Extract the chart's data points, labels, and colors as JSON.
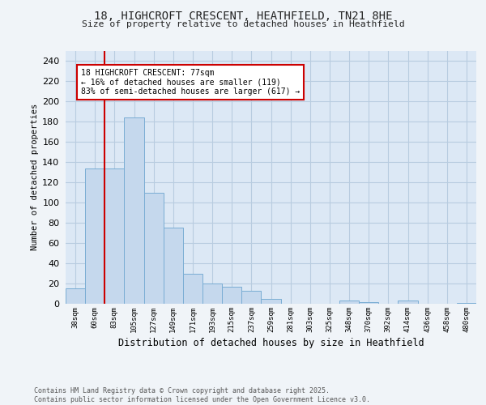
{
  "title_line1": "18, HIGHCROFT CRESCENT, HEATHFIELD, TN21 8HE",
  "title_line2": "Size of property relative to detached houses in Heathfield",
  "xlabel": "Distribution of detached houses by size in Heathfield",
  "ylabel": "Number of detached properties",
  "categories": [
    "38sqm",
    "60sqm",
    "83sqm",
    "105sqm",
    "127sqm",
    "149sqm",
    "171sqm",
    "193sqm",
    "215sqm",
    "237sqm",
    "259sqm",
    "281sqm",
    "303sqm",
    "325sqm",
    "348sqm",
    "370sqm",
    "392sqm",
    "414sqm",
    "436sqm",
    "458sqm",
    "480sqm"
  ],
  "values": [
    15,
    134,
    134,
    184,
    110,
    75,
    30,
    20,
    17,
    13,
    5,
    0,
    0,
    0,
    3,
    2,
    0,
    3,
    0,
    0,
    1
  ],
  "bar_color": "#c5d8ed",
  "bar_edge_color": "#7aadd4",
  "bg_color": "#dce8f5",
  "grid_color": "#b8cce0",
  "vline_color": "#cc0000",
  "vline_x": 1.5,
  "annotation_text": "18 HIGHCROFT CRESCENT: 77sqm\n← 16% of detached houses are smaller (119)\n83% of semi-detached houses are larger (617) →",
  "footer": "Contains HM Land Registry data © Crown copyright and database right 2025.\nContains public sector information licensed under the Open Government Licence v3.0.",
  "ylim": [
    0,
    250
  ],
  "yticks": [
    0,
    20,
    40,
    60,
    80,
    100,
    120,
    140,
    160,
    180,
    200,
    220,
    240
  ],
  "fig_bg": "#f0f4f8"
}
